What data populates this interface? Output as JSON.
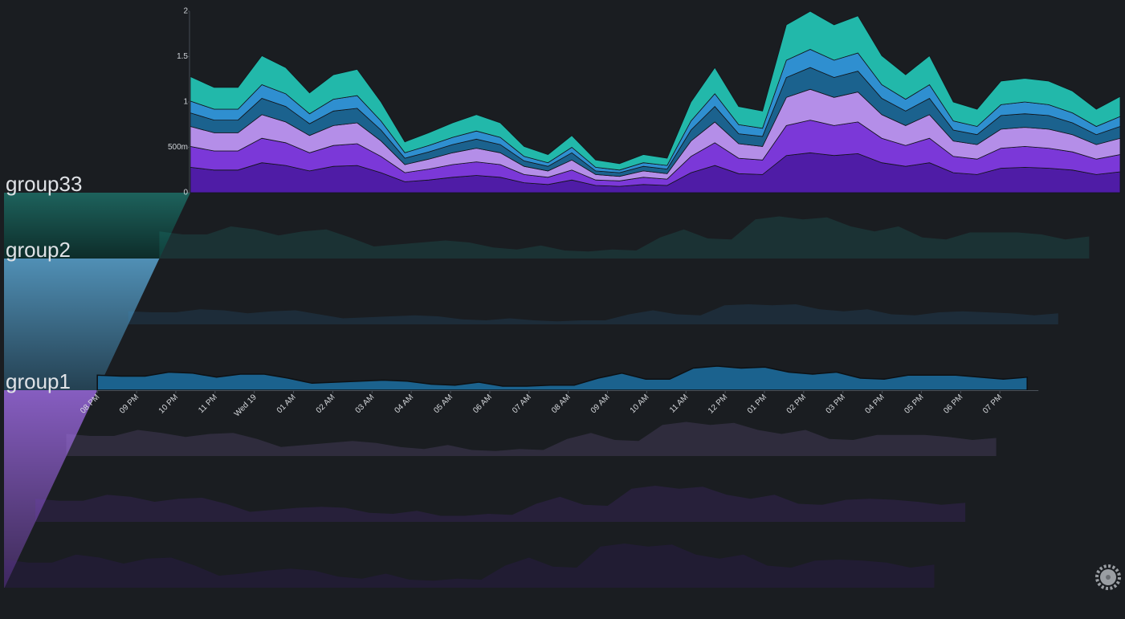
{
  "chart_data": {
    "type": "stacked_area",
    "ylim": [
      0,
      2
    ],
    "yticks": [
      0,
      {
        "value": 0.5,
        "label": "500m"
      },
      1,
      1.5,
      2
    ],
    "x_labels": [
      "08 PM",
      "09 PM",
      "10 PM",
      "11 PM",
      "Wed 19",
      "01 AM",
      "02 AM",
      "03 AM",
      "04 AM",
      "05 AM",
      "06 AM",
      "07 AM",
      "08 AM",
      "09 AM",
      "10 AM",
      "11 AM",
      "12 PM",
      "01 PM",
      "02 PM",
      "03 PM",
      "04 PM",
      "05 PM",
      "06 PM",
      "07 PM"
    ],
    "groups": [
      {
        "name": "group33",
        "color": "#1f6f66",
        "series": [
          {
            "color": "#22b8aa",
            "values": [
              0.27,
              0.24,
              0.24,
              0.32,
              0.29,
              0.23,
              0.27,
              0.29,
              0.21,
              0.12,
              0.14,
              0.16,
              0.18,
              0.16,
              0.11,
              0.09,
              0.13,
              0.08,
              0.07,
              0.09,
              0.08,
              0.21,
              0.29,
              0.2,
              0.19,
              0.39,
              0.42,
              0.39,
              0.41,
              0.32,
              0.27,
              0.32,
              0.21,
              0.19,
              0.26,
              0.26,
              0.26,
              0.24,
              0.19,
              0.22
            ]
          }
        ]
      },
      {
        "name": "group2",
        "color": "#5aa3cf",
        "series": [
          {
            "color": "#2f8fd0",
            "values": [
              0.13,
              0.12,
              0.12,
              0.15,
              0.14,
              0.11,
              0.13,
              0.14,
              0.1,
              0.06,
              0.07,
              0.08,
              0.09,
              0.08,
              0.05,
              0.04,
              0.06,
              0.04,
              0.03,
              0.04,
              0.04,
              0.1,
              0.14,
              0.1,
              0.09,
              0.19,
              0.2,
              0.19,
              0.2,
              0.15,
              0.13,
              0.15,
              0.1,
              0.09,
              0.12,
              0.13,
              0.12,
              0.11,
              0.09,
              0.11
            ]
          },
          {
            "color": "#1b628e",
            "values": [
              0.15,
              0.14,
              0.14,
              0.18,
              0.17,
              0.13,
              0.16,
              0.16,
              0.12,
              0.07,
              0.08,
              0.09,
              0.1,
              0.09,
              0.06,
              0.05,
              0.08,
              0.04,
              0.04,
              0.05,
              0.05,
              0.12,
              0.17,
              0.11,
              0.11,
              0.22,
              0.24,
              0.22,
              0.23,
              0.18,
              0.16,
              0.18,
              0.12,
              0.11,
              0.15,
              0.15,
              0.15,
              0.13,
              0.11,
              0.13
            ]
          }
        ]
      },
      {
        "name": "group1",
        "color": "#9a68dc",
        "series": [
          {
            "color": "#b48ee8",
            "values": [
              0.22,
              0.2,
              0.2,
              0.26,
              0.23,
              0.19,
              0.22,
              0.23,
              0.17,
              0.09,
              0.11,
              0.13,
              0.15,
              0.13,
              0.09,
              0.07,
              0.11,
              0.06,
              0.05,
              0.07,
              0.06,
              0.17,
              0.23,
              0.16,
              0.15,
              0.31,
              0.34,
              0.31,
              0.33,
              0.26,
              0.22,
              0.26,
              0.17,
              0.16,
              0.21,
              0.21,
              0.21,
              0.19,
              0.16,
              0.18
            ]
          },
          {
            "color": "#7b38d8",
            "values": [
              0.23,
              0.21,
              0.21,
              0.27,
              0.25,
              0.2,
              0.23,
              0.24,
              0.18,
              0.1,
              0.12,
              0.14,
              0.15,
              0.14,
              0.09,
              0.08,
              0.11,
              0.06,
              0.06,
              0.08,
              0.07,
              0.18,
              0.25,
              0.17,
              0.16,
              0.33,
              0.36,
              0.33,
              0.35,
              0.27,
              0.23,
              0.27,
              0.18,
              0.17,
              0.22,
              0.23,
              0.22,
              0.2,
              0.17,
              0.19
            ]
          },
          {
            "color": "#4f1ca6",
            "values": [
              0.28,
              0.25,
              0.25,
              0.33,
              0.3,
              0.24,
              0.29,
              0.3,
              0.22,
              0.12,
              0.14,
              0.17,
              0.19,
              0.17,
              0.11,
              0.09,
              0.14,
              0.08,
              0.07,
              0.09,
              0.08,
              0.22,
              0.3,
              0.21,
              0.2,
              0.41,
              0.44,
              0.41,
              0.43,
              0.33,
              0.29,
              0.33,
              0.22,
              0.2,
              0.27,
              0.28,
              0.27,
              0.25,
              0.2,
              0.23
            ]
          }
        ]
      }
    ]
  }
}
